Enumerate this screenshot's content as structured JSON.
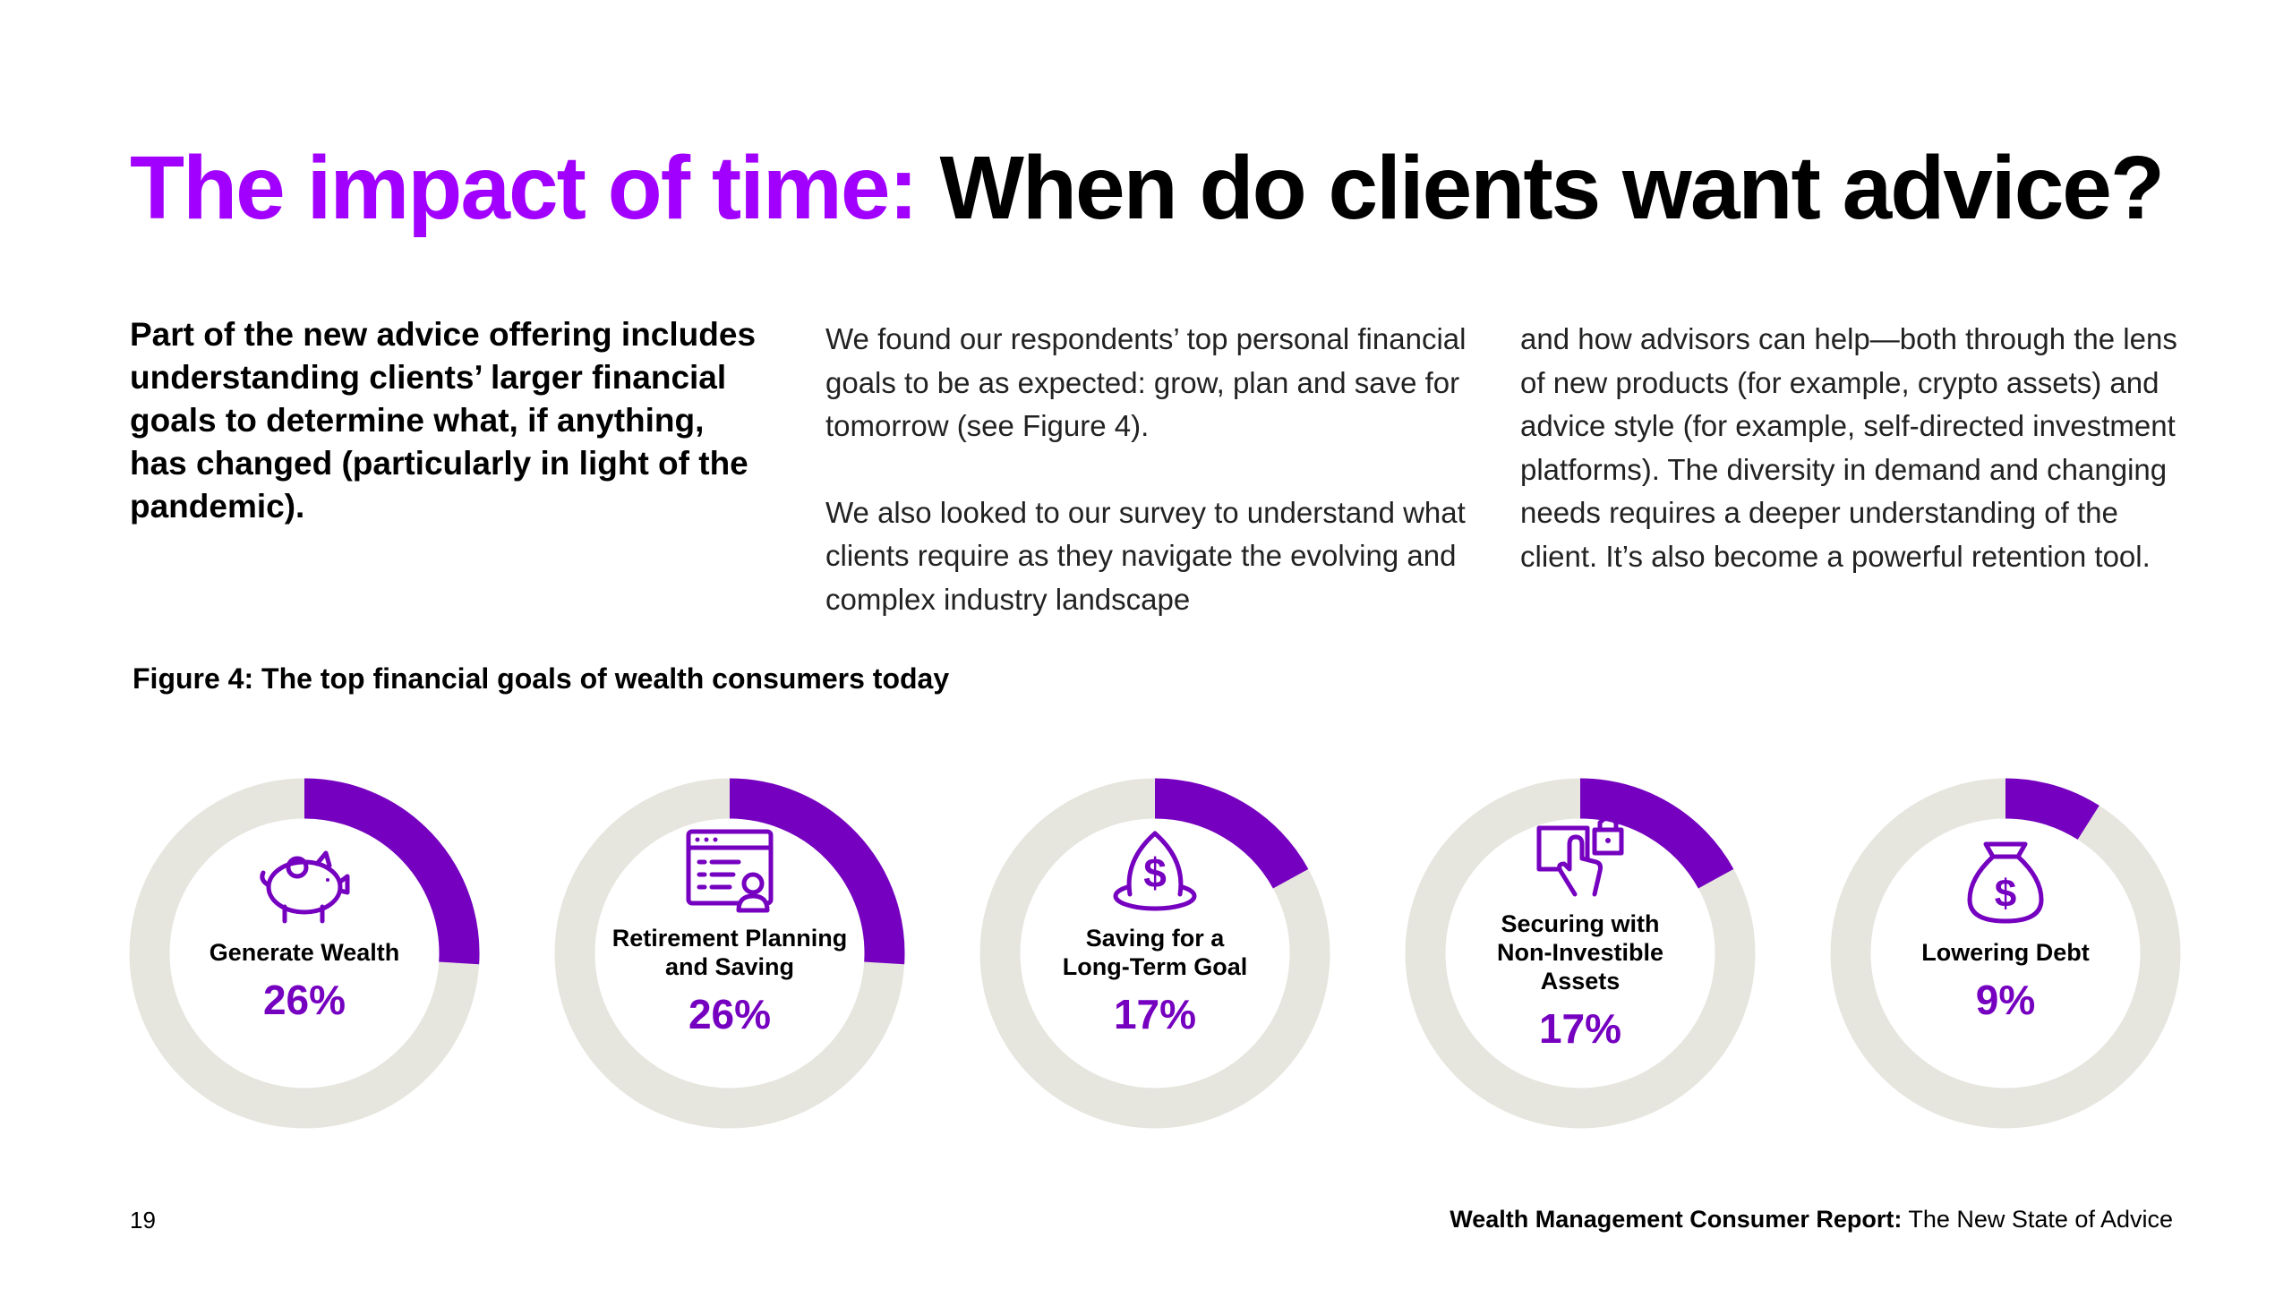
{
  "title": {
    "accent": "The impact of time:",
    "rest": "When do clients want advice?"
  },
  "lead": "Part of the new advice offering includes understanding clients’ larger financial goals to determine what, if anything, has changed (particularly in light of the pandemic).",
  "body": {
    "col2_p1": "We found our respondents’ top personal financial goals to be as expected: grow, plan and save for tomorrow (see Figure 4).",
    "col2_p2": "We also looked to our survey to understand what clients require as they navigate the evolving and complex industry landscape",
    "col3_p1": "and how advisors can help—both through the lens of new products (for example, crypto assets) and advice style (for example, self-directed investment platforms). The diversity in demand and changing needs requires a deeper understanding of the client. It’s also become a powerful retention tool."
  },
  "figure_title": "Figure 4: The top financial goals of wealth consumers today",
  "colors": {
    "accent": "#a100ff",
    "ring_fill": "#7500c0",
    "ring_track": "#e6e6df",
    "value_text": "#7500c0"
  },
  "chart_data": {
    "type": "pie",
    "title": "Figure 4: The top financial goals of wealth consumers today",
    "categories": [
      "Generate Wealth",
      "Retirement Planning and Saving",
      "Saving for a Long-Term Goal",
      "Securing with Non-Investible Assets",
      "Lowering Debt"
    ],
    "values": [
      26,
      26,
      17,
      17,
      9
    ],
    "value_labels": [
      "26%",
      "26%",
      "17%",
      "17%",
      "9%"
    ],
    "label_lines": [
      [
        "Generate Wealth"
      ],
      [
        "Retirement Planning",
        "and Saving"
      ],
      [
        "Saving for a",
        "Long-Term Goal"
      ],
      [
        "Securing with",
        "Non-Investible",
        "Assets"
      ],
      [
        "Lowering Debt"
      ]
    ],
    "icons": [
      "piggy-bank-icon",
      "retirement-planner-icon",
      "savings-egg-icon",
      "secure-asset-icon",
      "money-bag-icon"
    ],
    "unit": "%",
    "max": 100
  },
  "footer": {
    "page_number": "19",
    "report_bold": "Wealth Management Consumer Report:",
    "report_rest": " The New State of Advice"
  }
}
